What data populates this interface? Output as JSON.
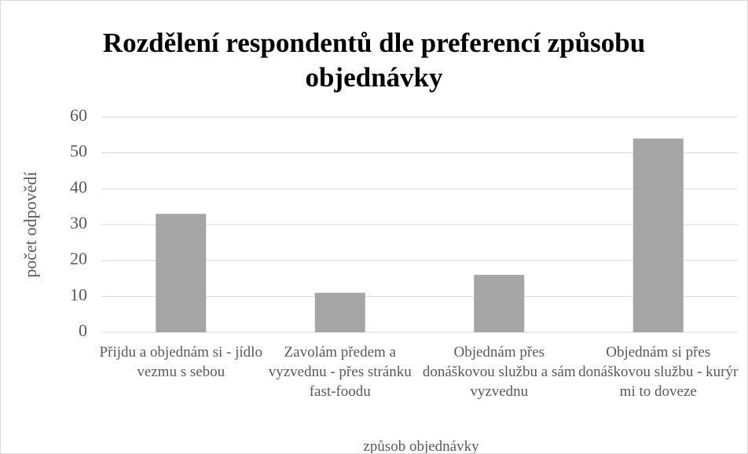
{
  "chart_data": {
    "type": "bar",
    "title": "Rozdělení respondentů dle preferencí způsobu objednávky",
    "categories": [
      "Přijdu a objednám si - jídlo vezmu s sebou",
      "Zavolám předem a vyzvednu - přes stránku fast-foodu",
      "Objednám přes donáškovou službu a sám vyzvednu",
      "Objednám si přes donáškovou službu - kurýr mi to doveze"
    ],
    "values": [
      33,
      11,
      16,
      54
    ],
    "color": "#a5a5a5",
    "ylim": [
      0,
      60
    ],
    "yticks": [
      0,
      10,
      20,
      30,
      40,
      50,
      60
    ],
    "grid": true,
    "x_label": "způsob objednávky",
    "y_label": "počet odpovědí"
  }
}
